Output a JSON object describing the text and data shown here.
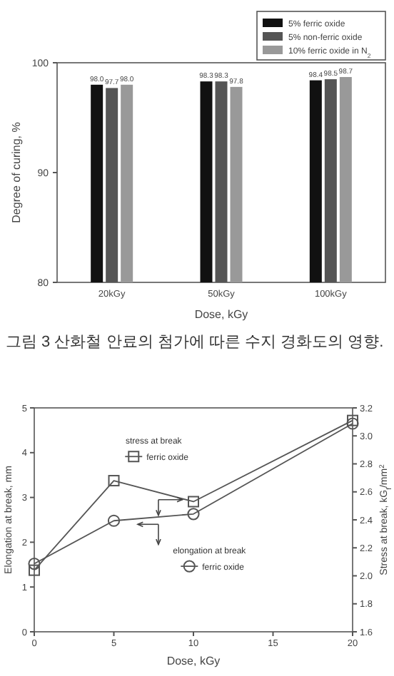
{
  "chart_data": [
    {
      "type": "bar",
      "categories": [
        "20kGy",
        "50kGy",
        "100kGy"
      ],
      "xlabel": "Dose, kGy",
      "ylabel": "Degree of curing, %",
      "ylim": [
        80,
        100
      ],
      "yticks": [
        80,
        90,
        100
      ],
      "legend": "top right",
      "series": [
        {
          "name": "5% ferric oxide",
          "color": "#111111",
          "values": [
            98.0,
            98.3,
            98.4
          ],
          "value_labels": [
            "98.0",
            "98.3",
            "98.4"
          ]
        },
        {
          "name": "5% non-ferric oxide",
          "color": "#555555",
          "values": [
            97.7,
            98.3,
            98.5
          ],
          "value_labels": [
            "97.7",
            "98.3",
            "98.5"
          ]
        },
        {
          "name": "10% ferric oxide in N$_{2}$",
          "color": "#999999",
          "values": [
            98.0,
            97.8,
            98.7
          ],
          "value_labels": [
            "98.0",
            "97.8",
            "98.7"
          ]
        }
      ],
      "annotations": [
        "그림 3 산화철 안료의 첨가에 따른 수지 경화도의 영향."
      ]
    },
    {
      "type": "line",
      "x": [
        0,
        5,
        10,
        20
      ],
      "xlim": [
        0,
        20
      ],
      "xticks": [
        0,
        5,
        10,
        15,
        20
      ],
      "xlabel": "Dose, kGy",
      "ylabel": "Elongation at break, mm",
      "y2label": "Stress at break, kG$_{f}$/mm$^{2}$",
      "ylim": [
        0,
        5
      ],
      "yticks": [
        0,
        1,
        2,
        3,
        4,
        5
      ],
      "y2lim": [
        1.6,
        3.2
      ],
      "y2ticks": [
        {
          "value": 1.6,
          "label": "1.6"
        },
        {
          "value": 1.8,
          "label": "1.8"
        },
        {
          "value": 2.0,
          "label": "2.0"
        },
        {
          "value": 2.2,
          "label": "2.2"
        },
        {
          "value": 2.4,
          "label": "2.4"
        },
        {
          "value": 2.6,
          "label": "2.6"
        },
        {
          "value": 2.8,
          "label": "2.8"
        },
        {
          "value": 3.0,
          "label": "3.0"
        },
        {
          "value": 3.2,
          "label": "3.2"
        }
      ],
      "series": [
        {
          "name": "ferric oxide",
          "axis": "y2",
          "marker": "square",
          "color": "#555555",
          "values": [
            2.04,
            2.68,
            2.53,
            3.11
          ]
        },
        {
          "name": "ferric oxide",
          "axis": "y",
          "marker": "circle",
          "color": "#555555",
          "values": [
            1.52,
            2.48,
            2.63,
            4.65
          ]
        }
      ],
      "annotations": [
        "stress at break",
        "elongation at break"
      ]
    }
  ]
}
